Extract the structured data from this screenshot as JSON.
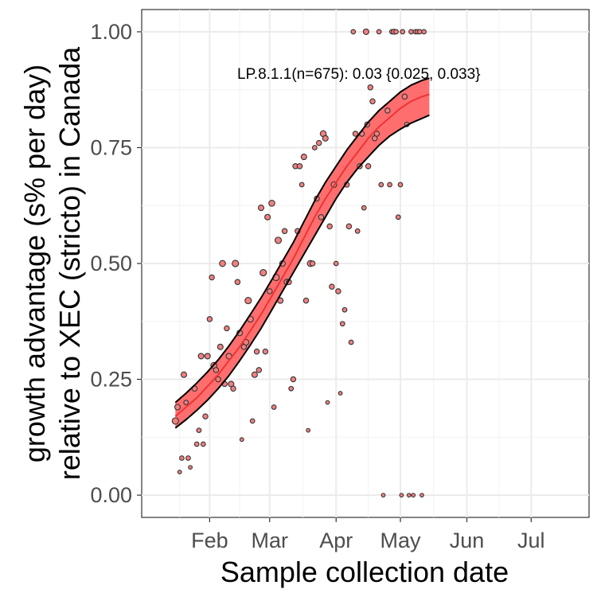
{
  "chart_data": {
    "type": "scatter",
    "xlabel": "Sample collection date",
    "ylabel_lines": [
      "growth advantage (s% per day)",
      "relative to XEC (stricto) in Canada"
    ],
    "x_ticks": [
      "Feb",
      "Mar",
      "Apr",
      "May",
      "Jun",
      "Jul"
    ],
    "x_tick_dates": [
      "2025-02-01",
      "2025-03-01",
      "2025-04-01",
      "2025-05-01",
      "2025-06-01",
      "2025-07-01"
    ],
    "x_tick_days": [
      31,
      59,
      90,
      120,
      151,
      181
    ],
    "xlim_days": [
      -0.7,
      208
    ],
    "y_ticks": [
      "0.00",
      "0.25",
      "0.50",
      "0.75",
      "1.00"
    ],
    "y_tick_values": [
      0,
      0.25,
      0.5,
      0.75,
      1
    ],
    "ylim": [
      -0.048,
      1.048
    ],
    "grid": true,
    "annotation": "LP.8.1.1(n=675): 0.03 {0.025, 0.033}",
    "colors": {
      "band": "#ff6666",
      "line": "#ee3333",
      "point_fill": "#f08080",
      "point_stroke": "#333333",
      "band_edge": "#000000"
    },
    "fit": {
      "x": [
        15,
        20,
        25,
        30,
        35,
        40,
        45,
        50,
        55,
        60,
        65,
        70,
        75,
        80,
        85,
        90,
        95,
        100,
        105,
        110,
        115,
        120,
        125,
        130,
        133.5
      ],
      "mean": [
        0.17,
        0.19,
        0.21,
        0.235,
        0.26,
        0.29,
        0.32,
        0.355,
        0.39,
        0.43,
        0.47,
        0.51,
        0.555,
        0.6,
        0.64,
        0.675,
        0.71,
        0.74,
        0.77,
        0.795,
        0.815,
        0.835,
        0.85,
        0.86,
        0.865
      ],
      "lower": [
        0.145,
        0.163,
        0.183,
        0.205,
        0.23,
        0.258,
        0.29,
        0.324,
        0.36,
        0.4,
        0.44,
        0.48,
        0.52,
        0.56,
        0.6,
        0.64,
        0.675,
        0.705,
        0.73,
        0.755,
        0.775,
        0.79,
        0.803,
        0.813,
        0.82
      ],
      "upper": [
        0.2,
        0.22,
        0.242,
        0.266,
        0.292,
        0.322,
        0.355,
        0.39,
        0.426,
        0.465,
        0.505,
        0.545,
        0.59,
        0.635,
        0.675,
        0.71,
        0.745,
        0.775,
        0.805,
        0.83,
        0.85,
        0.87,
        0.885,
        0.895,
        0.9
      ]
    },
    "points": [
      {
        "x": 15,
        "y": 0.16,
        "n": 6
      },
      {
        "x": 16,
        "y": 0.19,
        "n": 4
      },
      {
        "x": 17,
        "y": 0.05,
        "n": 1
      },
      {
        "x": 18,
        "y": 0.08,
        "n": 2
      },
      {
        "x": 19,
        "y": 0.26,
        "n": 4
      },
      {
        "x": 20,
        "y": 0.2,
        "n": 2
      },
      {
        "x": 21,
        "y": 0.08,
        "n": 2
      },
      {
        "x": 22,
        "y": 0.06,
        "n": 1
      },
      {
        "x": 24,
        "y": 0.23,
        "n": 3
      },
      {
        "x": 25,
        "y": 0.11,
        "n": 2
      },
      {
        "x": 26,
        "y": 0.14,
        "n": 2
      },
      {
        "x": 27,
        "y": 0.3,
        "n": 4
      },
      {
        "x": 28,
        "y": 0.11,
        "n": 2
      },
      {
        "x": 29,
        "y": 0.17,
        "n": 3
      },
      {
        "x": 30,
        "y": 0.3,
        "n": 4
      },
      {
        "x": 31,
        "y": 0.38,
        "n": 3
      },
      {
        "x": 32,
        "y": 0.47,
        "n": 3
      },
      {
        "x": 33,
        "y": 0.28,
        "n": 5
      },
      {
        "x": 34,
        "y": 0.27,
        "n": 3
      },
      {
        "x": 35,
        "y": 0.25,
        "n": 3
      },
      {
        "x": 36,
        "y": 0.32,
        "n": 4
      },
      {
        "x": 37,
        "y": 0.5,
        "n": 5
      },
      {
        "x": 38,
        "y": 0.24,
        "n": 3
      },
      {
        "x": 39,
        "y": 0.36,
        "n": 3
      },
      {
        "x": 40,
        "y": 0.3,
        "n": 4
      },
      {
        "x": 41,
        "y": 0.24,
        "n": 4
      },
      {
        "x": 42,
        "y": 0.23,
        "n": 3
      },
      {
        "x": 43,
        "y": 0.5,
        "n": 6
      },
      {
        "x": 44,
        "y": 0.46,
        "n": 3
      },
      {
        "x": 45,
        "y": 0.35,
        "n": 4
      },
      {
        "x": 46,
        "y": 0.12,
        "n": 1
      },
      {
        "x": 47,
        "y": 0.32,
        "n": 3
      },
      {
        "x": 48,
        "y": 0.33,
        "n": 4
      },
      {
        "x": 49,
        "y": 0.42,
        "n": 6
      },
      {
        "x": 50,
        "y": 0.38,
        "n": 5
      },
      {
        "x": 51,
        "y": 0.16,
        "n": 2
      },
      {
        "x": 52,
        "y": 0.26,
        "n": 4
      },
      {
        "x": 53,
        "y": 0.31,
        "n": 3
      },
      {
        "x": 54,
        "y": 0.27,
        "n": 3
      },
      {
        "x": 55,
        "y": 0.62,
        "n": 4
      },
      {
        "x": 56,
        "y": 0.48,
        "n": 6
      },
      {
        "x": 57,
        "y": 0.31,
        "n": 3
      },
      {
        "x": 58,
        "y": 0.6,
        "n": 4
      },
      {
        "x": 59,
        "y": 0.44,
        "n": 3
      },
      {
        "x": 60,
        "y": 0.63,
        "n": 5
      },
      {
        "x": 61,
        "y": 0.19,
        "n": 2
      },
      {
        "x": 62,
        "y": 0.47,
        "n": 6
      },
      {
        "x": 63,
        "y": 0.55,
        "n": 6
      },
      {
        "x": 64,
        "y": 0.42,
        "n": 4
      },
      {
        "x": 65,
        "y": 0.5,
        "n": 4
      },
      {
        "x": 66,
        "y": 0.57,
        "n": 3
      },
      {
        "x": 67,
        "y": 0.46,
        "n": 4
      },
      {
        "x": 68,
        "y": 0.46,
        "n": 3
      },
      {
        "x": 69,
        "y": 0.23,
        "n": 2
      },
      {
        "x": 70,
        "y": 0.25,
        "n": 3
      },
      {
        "x": 71,
        "y": 0.71,
        "n": 3
      },
      {
        "x": 72,
        "y": 0.57,
        "n": 3
      },
      {
        "x": 73,
        "y": 0.71,
        "n": 3
      },
      {
        "x": 74,
        "y": 0.67,
        "n": 2
      },
      {
        "x": 75,
        "y": 0.73,
        "n": 4
      },
      {
        "x": 76,
        "y": 0.42,
        "n": 3
      },
      {
        "x": 77,
        "y": 0.14,
        "n": 1
      },
      {
        "x": 78,
        "y": 0.5,
        "n": 5
      },
      {
        "x": 79,
        "y": 0.5,
        "n": 3
      },
      {
        "x": 80,
        "y": 0.75,
        "n": 2
      },
      {
        "x": 81,
        "y": 0.64,
        "n": 3
      },
      {
        "x": 82,
        "y": 0.76,
        "n": 3
      },
      {
        "x": 83,
        "y": 0.6,
        "n": 3
      },
      {
        "x": 84,
        "y": 0.78,
        "n": 5
      },
      {
        "x": 85,
        "y": 0.77,
        "n": 4
      },
      {
        "x": 86,
        "y": 0.2,
        "n": 1
      },
      {
        "x": 87,
        "y": 0.58,
        "n": 3
      },
      {
        "x": 88,
        "y": 0.45,
        "n": 3
      },
      {
        "x": 89,
        "y": 0.67,
        "n": 4
      },
      {
        "x": 90,
        "y": 0.5,
        "n": 2
      },
      {
        "x": 91,
        "y": 0.44,
        "n": 3
      },
      {
        "x": 92,
        "y": 0.22,
        "n": 1
      },
      {
        "x": 93,
        "y": 0.37,
        "n": 2
      },
      {
        "x": 94,
        "y": 0.4,
        "n": 2
      },
      {
        "x": 95,
        "y": 0.67,
        "n": 3
      },
      {
        "x": 96,
        "y": 0.58,
        "n": 3
      },
      {
        "x": 97,
        "y": 0.33,
        "n": 2
      },
      {
        "x": 98,
        "y": 1.0,
        "n": 2
      },
      {
        "x": 99,
        "y": 0.78,
        "n": 3
      },
      {
        "x": 100,
        "y": 0.57,
        "n": 2
      },
      {
        "x": 101,
        "y": 0.71,
        "n": 3
      },
      {
        "x": 102,
        "y": 0.78,
        "n": 3
      },
      {
        "x": 103,
        "y": 0.62,
        "n": 2
      },
      {
        "x": 104,
        "y": 1.0,
        "n": 4
      },
      {
        "x": 104.5,
        "y": 0.8,
        "n": 3
      },
      {
        "x": 105,
        "y": 0.71,
        "n": 3
      },
      {
        "x": 106,
        "y": 0.88,
        "n": 3
      },
      {
        "x": 107,
        "y": 0.85,
        "n": 3
      },
      {
        "x": 108,
        "y": 0.77,
        "n": 3
      },
      {
        "x": 109,
        "y": 0.78,
        "n": 3
      },
      {
        "x": 110,
        "y": 1.0,
        "n": 2
      },
      {
        "x": 111,
        "y": 0.67,
        "n": 2
      },
      {
        "x": 112,
        "y": 0.0,
        "n": 1
      },
      {
        "x": 114,
        "y": 0.83,
        "n": 3
      },
      {
        "x": 115,
        "y": 0.67,
        "n": 2
      },
      {
        "x": 116,
        "y": 1.0,
        "n": 2
      },
      {
        "x": 117,
        "y": 1.0,
        "n": 3
      },
      {
        "x": 118,
        "y": 1.0,
        "n": 2
      },
      {
        "x": 119,
        "y": 0.6,
        "n": 2
      },
      {
        "x": 120,
        "y": 0.67,
        "n": 2
      },
      {
        "x": 120.5,
        "y": 0.0,
        "n": 1
      },
      {
        "x": 121,
        "y": 1.0,
        "n": 2
      },
      {
        "x": 122,
        "y": 0.86,
        "n": 3
      },
      {
        "x": 123,
        "y": 0.8,
        "n": 2
      },
      {
        "x": 124,
        "y": 0.0,
        "n": 1
      },
      {
        "x": 125,
        "y": 1.0,
        "n": 2
      },
      {
        "x": 126,
        "y": 0.0,
        "n": 1
      },
      {
        "x": 127,
        "y": 1.0,
        "n": 2
      },
      {
        "x": 128,
        "y": 1.0,
        "n": 2
      },
      {
        "x": 129,
        "y": 1.0,
        "n": 2
      },
      {
        "x": 130,
        "y": 0.0,
        "n": 1
      },
      {
        "x": 131,
        "y": 1.0,
        "n": 2
      }
    ]
  }
}
